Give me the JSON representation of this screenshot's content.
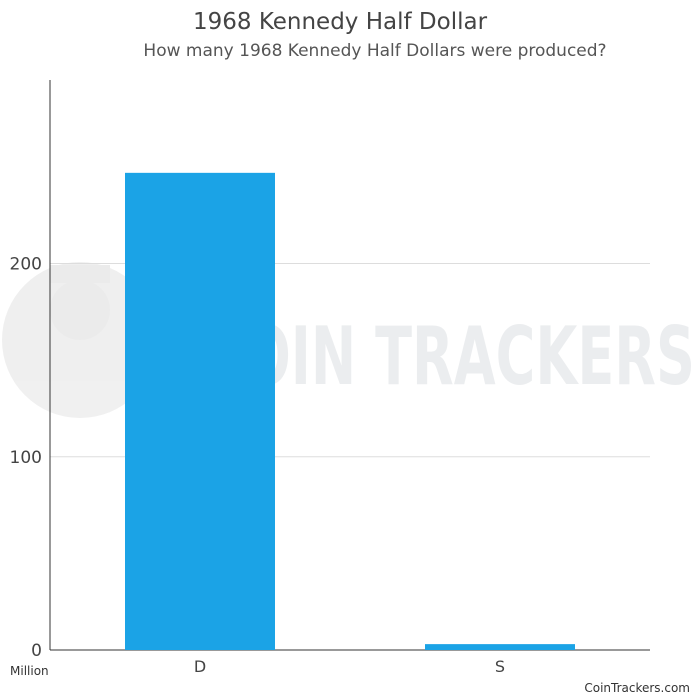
{
  "chart_data": {
    "type": "bar",
    "title": "1968 Kennedy Half Dollar",
    "subtitle": "How many 1968 Kennedy Half Dollars were produced?",
    "categories": [
      "D",
      "S"
    ],
    "values": [
      246.95,
      3.04
    ],
    "ylabel": "Million",
    "ylim": [
      0,
      295
    ],
    "yticks": [
      0,
      100,
      200
    ],
    "grid": true,
    "bar_color": "#1ba3e6"
  },
  "watermark": {
    "text": "COIN TRACKERS"
  },
  "footer": {
    "credit": "CoinTrackers.com"
  }
}
